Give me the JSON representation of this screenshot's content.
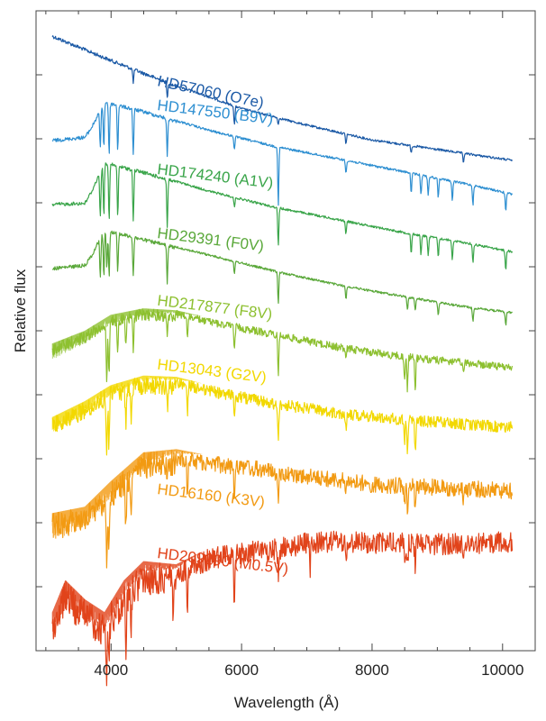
{
  "chart_data": {
    "type": "line",
    "xlabel": "Wavelength (Å)",
    "ylabel": "Relative flux",
    "xlim": [
      2850,
      10500
    ],
    "ylim": [
      0,
      100
    ],
    "x_ticks": [
      4000,
      6000,
      8000,
      10000
    ],
    "x_tick_labels": [
      "4000",
      "6000",
      "8000",
      "10000"
    ],
    "y_ticks": [
      10,
      20,
      30,
      40,
      50,
      60,
      70,
      80,
      90
    ],
    "grid": false,
    "legend": "none",
    "y_scale_note": "spectra offset vertically",
    "series": [
      {
        "name": "HD57060 (O7e)",
        "color": "#1c5aa6",
        "label_pos": [
          4700,
          88.3
        ],
        "x": [
          3100,
          4000,
          5000,
          6000,
          7000,
          8000,
          9000,
          10150
        ],
        "y": [
          96.3,
          92.5,
          88.5,
          84.9,
          82.3,
          80.0,
          78.5,
          76.8
        ],
        "absorption": [
          [
            4340,
            2.0
          ],
          [
            4861,
            2.5
          ],
          [
            5890,
            3.0
          ],
          [
            6563,
            1.0
          ],
          [
            7600,
            1.5
          ],
          [
            8600,
            1.0
          ],
          [
            9400,
            1.5
          ]
        ]
      },
      {
        "name": "HD147550 (B9V)",
        "color": "#2e8fd1",
        "label_pos": [
          4700,
          84.5
        ],
        "x": [
          3100,
          3600,
          3700,
          3900,
          4500,
          5500,
          6500,
          7500,
          8500,
          9500,
          10150
        ],
        "y": [
          80.0,
          80.5,
          82.0,
          86.0,
          84.5,
          81.5,
          79.0,
          77.0,
          75.0,
          73.0,
          71.5
        ],
        "absorption": [
          [
            3835,
            6.0
          ],
          [
            3889,
            7.0
          ],
          [
            3970,
            8.0
          ],
          [
            4102,
            7.0
          ],
          [
            4340,
            7.0
          ],
          [
            4861,
            6.0
          ],
          [
            5890,
            2.0
          ],
          [
            6563,
            9.0
          ],
          [
            7600,
            2.0
          ],
          [
            8600,
            3.0
          ],
          [
            8750,
            3.0
          ],
          [
            8860,
            3.0
          ],
          [
            9015,
            3.0
          ],
          [
            9230,
            3.0
          ],
          [
            9546,
            3.0
          ],
          [
            10049,
            3.0
          ]
        ]
      },
      {
        "name": "HD174240 (A1V)",
        "color": "#3aa54a",
        "label_pos": [
          4700,
          74.5
        ],
        "x": [
          3100,
          3600,
          3700,
          3900,
          4500,
          5500,
          6500,
          7500,
          8500,
          9500,
          10150
        ],
        "y": [
          70.0,
          70.2,
          72.0,
          76.5,
          75.0,
          72.0,
          69.5,
          67.5,
          65.5,
          63.8,
          62.5
        ],
        "absorption": [
          [
            3835,
            7.0
          ],
          [
            3889,
            8.0
          ],
          [
            3970,
            9.0
          ],
          [
            4102,
            8.0
          ],
          [
            4340,
            8.0
          ],
          [
            4861,
            7.5
          ],
          [
            5890,
            1.5
          ],
          [
            6563,
            6.0
          ],
          [
            7600,
            2.0
          ],
          [
            8600,
            3.0
          ],
          [
            8750,
            3.0
          ],
          [
            8860,
            3.0
          ],
          [
            9015,
            3.0
          ],
          [
            9230,
            3.0
          ],
          [
            9546,
            3.0
          ],
          [
            10049,
            3.0
          ]
        ]
      },
      {
        "name": "HD29391 (F0V)",
        "color": "#5aa83a",
        "label_pos": [
          4700,
          64.5
        ],
        "x": [
          3100,
          3600,
          3700,
          3900,
          4500,
          5500,
          6500,
          7500,
          8500,
          9500,
          10150
        ],
        "y": [
          60.0,
          60.5,
          62.0,
          66.0,
          64.5,
          62.0,
          59.5,
          57.3,
          55.5,
          53.8,
          53.0
        ],
        "absorption": [
          [
            3835,
            6.0
          ],
          [
            3889,
            7.0
          ],
          [
            3934,
            6.0
          ],
          [
            3970,
            7.0
          ],
          [
            4102,
            6.0
          ],
          [
            4340,
            6.0
          ],
          [
            4861,
            6.0
          ],
          [
            5890,
            2.0
          ],
          [
            6563,
            5.0
          ],
          [
            7600,
            2.0
          ],
          [
            8542,
            2.0
          ],
          [
            8662,
            2.0
          ],
          [
            9015,
            2.0
          ],
          [
            9546,
            2.0
          ],
          [
            10049,
            2.0
          ]
        ]
      },
      {
        "name": "HD217877 (F8V)",
        "color": "#8dc030",
        "label_pos": [
          4700,
          54.0
        ],
        "x": [
          3100,
          3600,
          4000,
          4500,
          5000,
          5500,
          6500,
          7500,
          8500,
          9500,
          10150
        ],
        "y": [
          48.0,
          50.0,
          52.5,
          53.5,
          53.2,
          52.0,
          50.0,
          48.0,
          46.5,
          45.5,
          44.8
        ],
        "absorption": [
          [
            3934,
            10.0
          ],
          [
            3968,
            9.0
          ],
          [
            4102,
            5.0
          ],
          [
            4226,
            4.0
          ],
          [
            4340,
            5.0
          ],
          [
            4861,
            4.0
          ],
          [
            5170,
            3.0
          ],
          [
            5890,
            4.0
          ],
          [
            6563,
            6.0
          ],
          [
            7600,
            2.0
          ],
          [
            8498,
            4.0
          ],
          [
            8542,
            5.0
          ],
          [
            8662,
            5.0
          ],
          [
            9400,
            2.0
          ]
        ]
      },
      {
        "name": "HD13043 (G2V)",
        "color": "#f2d800",
        "label_pos": [
          4700,
          44.0
        ],
        "x": [
          3100,
          3600,
          4000,
          4500,
          5000,
          5500,
          6500,
          7500,
          8500,
          9500,
          10150
        ],
        "y": [
          36.5,
          39.0,
          41.5,
          43.0,
          42.8,
          41.5,
          39.5,
          38.0,
          37.0,
          36.2,
          35.8
        ],
        "absorption": [
          [
            3934,
            9.0
          ],
          [
            3968,
            8.0
          ],
          [
            4226,
            5.0
          ],
          [
            4308,
            5.0
          ],
          [
            4861,
            4.0
          ],
          [
            5170,
            4.0
          ],
          [
            5890,
            4.0
          ],
          [
            6563,
            6.0
          ],
          [
            7600,
            2.0
          ],
          [
            8498,
            4.0
          ],
          [
            8542,
            5.0
          ],
          [
            8662,
            5.0
          ]
        ]
      },
      {
        "name": "HD16160 (K3V)",
        "color": "#f29a12",
        "label_pos": [
          4700,
          24.5
        ],
        "x": [
          3100,
          3600,
          4000,
          4500,
          5000,
          5500,
          6000,
          7000,
          8000,
          9000,
          10150
        ],
        "y": [
          21.5,
          22.5,
          26.5,
          31.0,
          31.5,
          30.5,
          30.0,
          28.5,
          27.3,
          26.8,
          26.3
        ],
        "absorption": [
          [
            3934,
            10.0
          ],
          [
            3968,
            9.0
          ],
          [
            4226,
            8.0
          ],
          [
            4308,
            5.0
          ],
          [
            4861,
            4.0
          ],
          [
            5170,
            6.0
          ],
          [
            5890,
            6.0
          ],
          [
            6563,
            5.0
          ],
          [
            7600,
            2.0
          ],
          [
            8498,
            3.0
          ],
          [
            8542,
            4.0
          ],
          [
            8662,
            4.0
          ],
          [
            9400,
            2.0
          ]
        ]
      },
      {
        "name": "HD209290 (M0.5V)",
        "color": "#e1431a",
        "label_pos": [
          4700,
          14.5
        ],
        "x": [
          3100,
          3300,
          3600,
          3900,
          4200,
          4500,
          5000,
          5500,
          6000,
          6500,
          7000,
          7500,
          8000,
          9000,
          10150
        ],
        "y": [
          6.0,
          11.0,
          8.0,
          6.0,
          11.0,
          14.0,
          13.5,
          16.0,
          17.0,
          17.5,
          18.5,
          18.8,
          18.5,
          18.3,
          18.7
        ],
        "absorption": [
          [
            3934,
            8.0
          ],
          [
            3968,
            8.0
          ],
          [
            4226,
            10.0
          ],
          [
            4308,
            6.0
          ],
          [
            4955,
            5.0
          ],
          [
            5170,
            6.0
          ],
          [
            5890,
            8.0
          ],
          [
            6563,
            4.0
          ],
          [
            7050,
            4.0
          ],
          [
            7600,
            3.0
          ],
          [
            8498,
            3.0
          ],
          [
            8542,
            4.0
          ],
          [
            8662,
            4.0
          ],
          [
            9400,
            2.0
          ]
        ]
      }
    ]
  }
}
